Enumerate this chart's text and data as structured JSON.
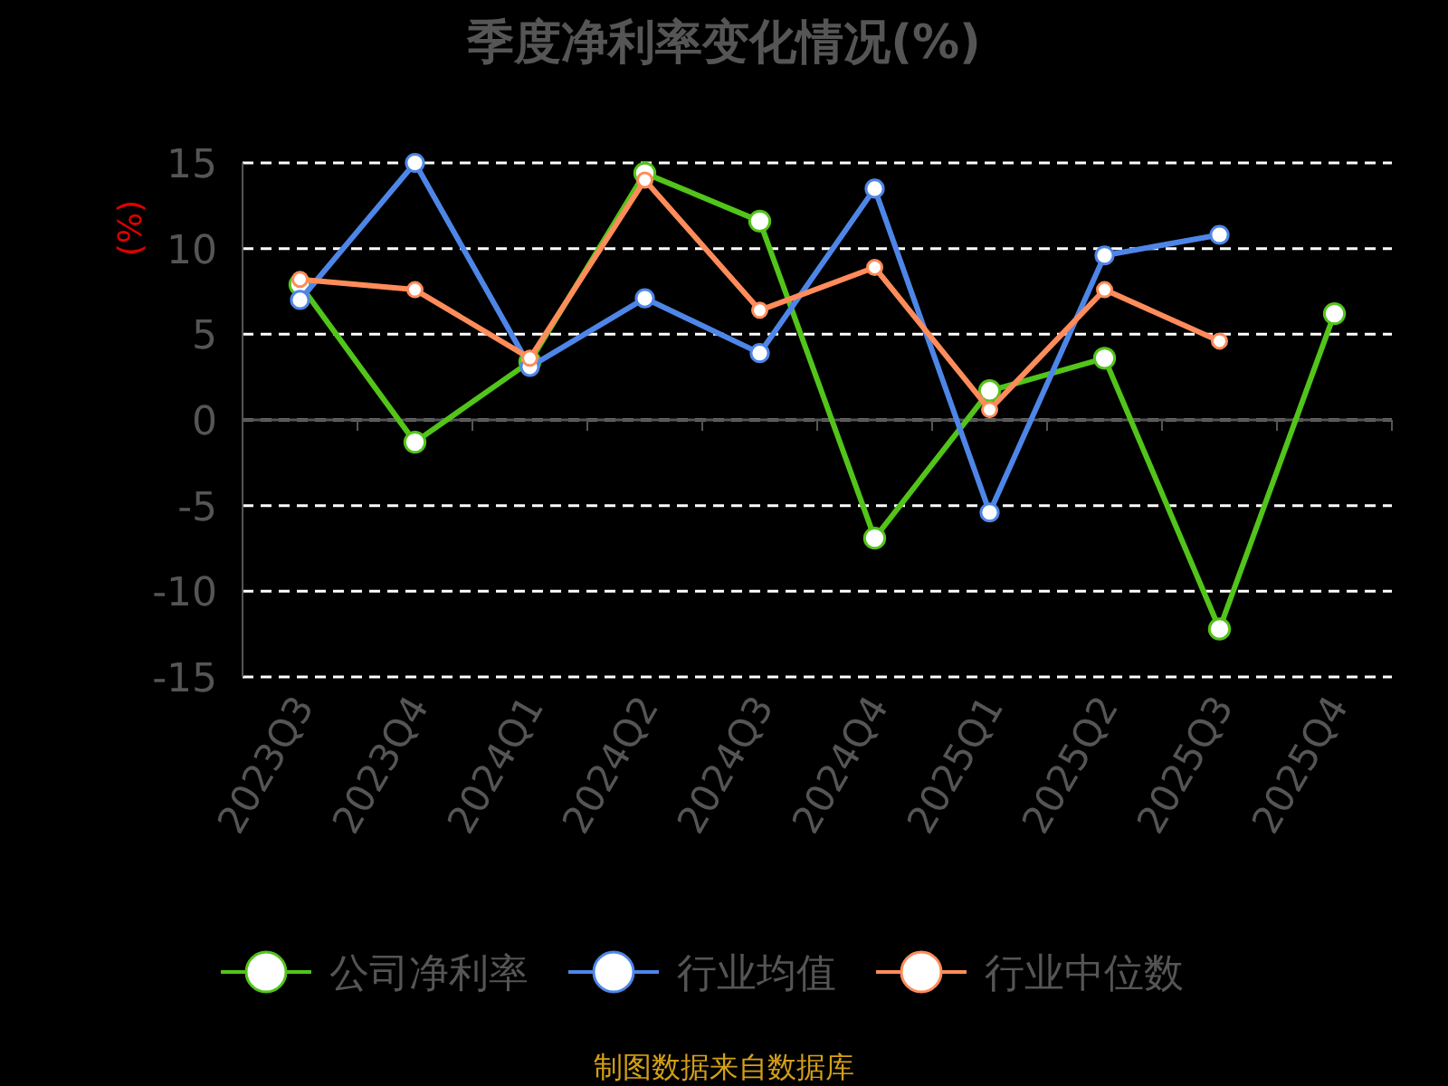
{
  "chart_data": {
    "type": "line",
    "title": "季度净利率变化情况(%)",
    "ylabel": "(%)",
    "categories": [
      "2023Q3",
      "2023Q4",
      "2024Q1",
      "2024Q2",
      "2024Q3",
      "2024Q4",
      "2025Q1",
      "2025Q2",
      "2025Q3",
      "2025Q4"
    ],
    "series": [
      {
        "name": "公司净利率",
        "color": "#52c41a",
        "values": [
          7.9,
          -1.3,
          3.4,
          14.4,
          11.6,
          -6.9,
          1.7,
          3.6,
          -12.2,
          6.2
        ]
      },
      {
        "name": "行业均值",
        "color": "#4e86e8",
        "values": [
          7.0,
          15.0,
          3.1,
          7.1,
          3.9,
          13.5,
          -5.4,
          9.6,
          10.8,
          null
        ]
      },
      {
        "name": "行业中位数",
        "color": "#ff8c5a",
        "values": [
          8.2,
          7.6,
          3.6,
          14.0,
          6.4,
          8.9,
          0.6,
          7.6,
          4.6,
          null
        ]
      }
    ],
    "ylim": [
      -15,
      15
    ],
    "yticks": [
      -15,
      -10,
      -5,
      0,
      5,
      10,
      15
    ],
    "grid": "y",
    "legend": "bottom",
    "marker": "circle",
    "line_style": "solid",
    "annotations": [
      "制图数据来自数据库"
    ]
  }
}
